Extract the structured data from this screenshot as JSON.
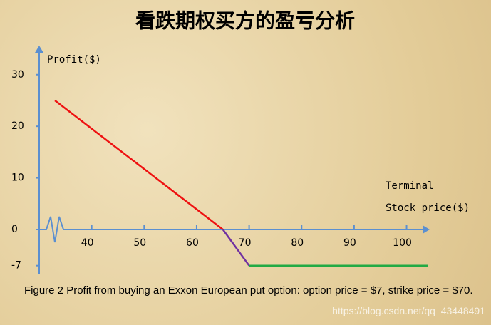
{
  "chart_data": {
    "type": "line",
    "title": "看跌期权买方的盈亏分析",
    "y_label": "Profit($)",
    "x_label": [
      "Terminal",
      "Stock price($)"
    ],
    "xlim": [
      30,
      104
    ],
    "ylim": [
      -8.7,
      34.8
    ],
    "xticks": [
      40,
      50,
      60,
      70,
      80,
      90,
      100
    ],
    "yticks": [
      30,
      20,
      10,
      0,
      -7
    ],
    "series": [
      {
        "color": "#ee1111",
        "x": [
          33,
          65
        ],
        "values": [
          25,
          0
        ]
      },
      {
        "color": "#7030a0",
        "x": [
          65,
          70
        ],
        "values": [
          0,
          -7
        ]
      },
      {
        "color": "#22aa44",
        "x": [
          70,
          104
        ],
        "values": [
          -7,
          -7
        ]
      }
    ]
  },
  "caption": "Figure 2   Profit from buying an Exxon European put option: option price = $7, strike price = $70.",
  "watermark": "https://blog.csdn.net/qq_43448491"
}
